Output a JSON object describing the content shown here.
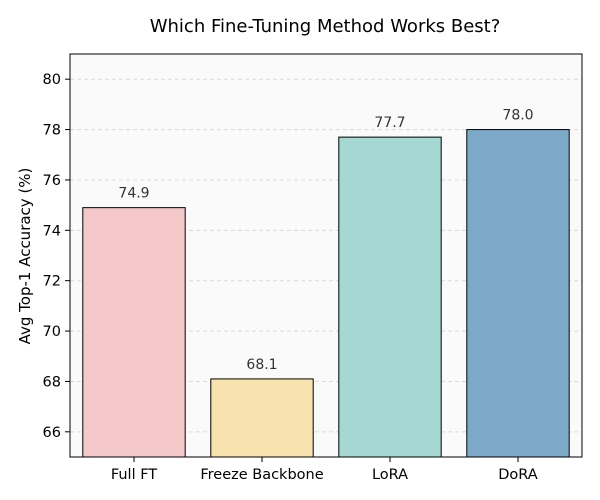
{
  "chart_data": {
    "type": "bar",
    "title": "Which Fine-Tuning Method Works Best?",
    "xlabel": "",
    "ylabel": "Avg Top-1 Accuracy (%)",
    "categories": [
      "Full FT",
      "Freeze Backbone",
      "LoRA",
      "DoRA"
    ],
    "values": [
      74.9,
      68.1,
      77.7,
      78.0
    ],
    "value_labels": [
      "74.9",
      "68.1",
      "77.7",
      "78.0"
    ],
    "ylim": [
      65,
      81
    ],
    "yticks": [
      66,
      68,
      70,
      72,
      74,
      76,
      78,
      80
    ],
    "ytick_labels": [
      "66",
      "68",
      "70",
      "72",
      "74",
      "76",
      "78",
      "80"
    ],
    "grid": "horizontal dashed",
    "legend": "none",
    "colors": [
      "#f4c7c9",
      "#f8e2ad",
      "#a5d8d3",
      "#7da9c8"
    ],
    "edge_color": "#000000",
    "plot_background": "#fafafa"
  }
}
